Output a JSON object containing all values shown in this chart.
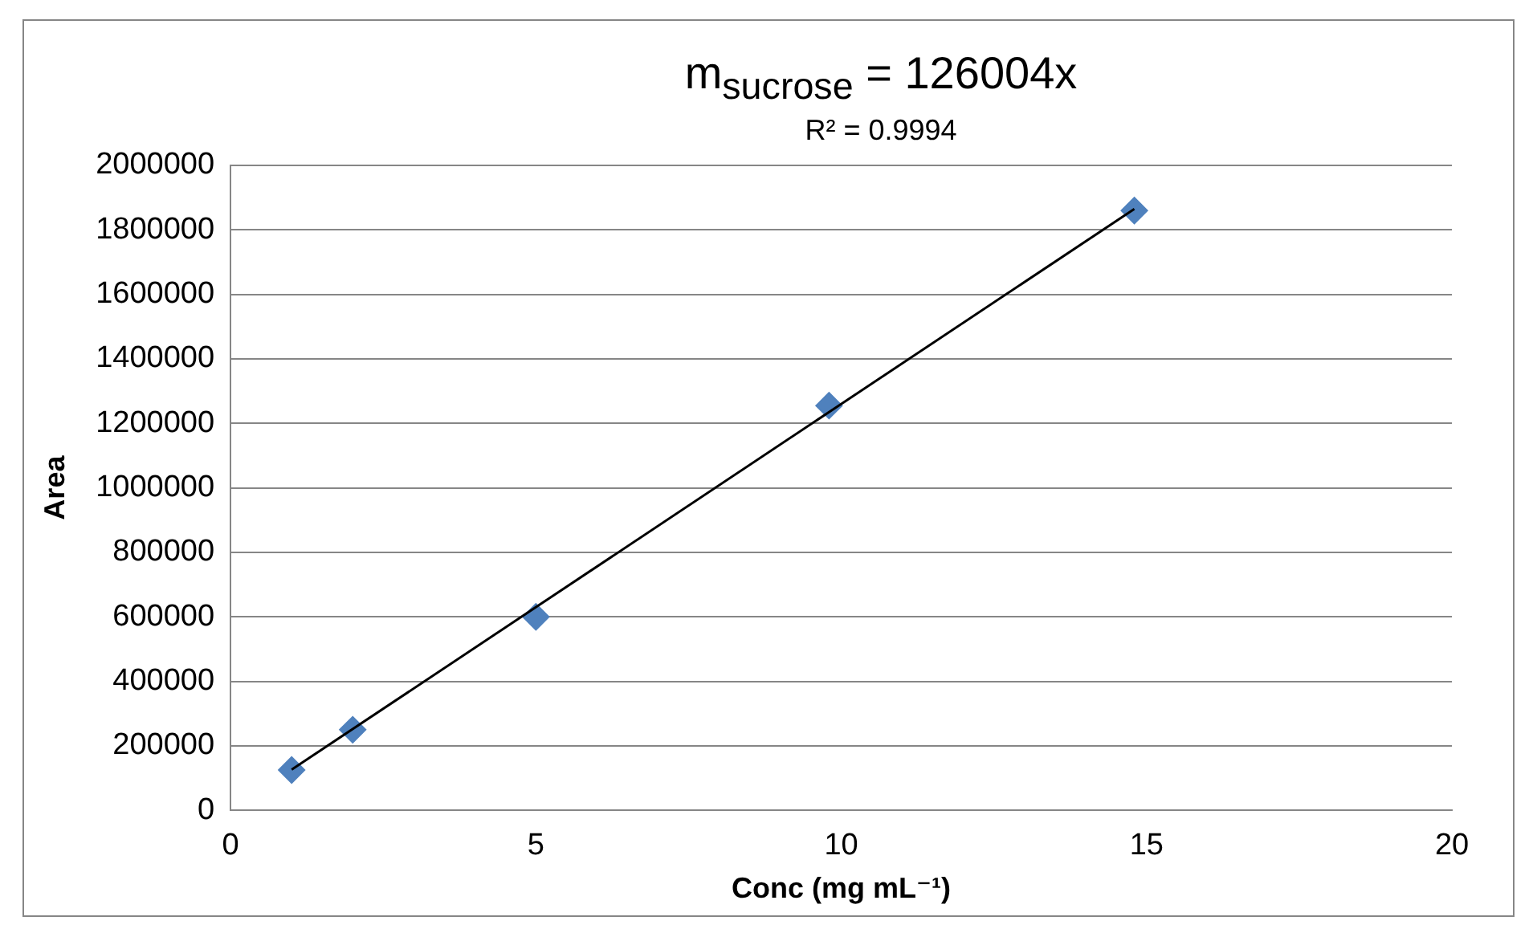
{
  "chart_data": {
    "type": "scatter",
    "title": "m$_{sucrose}$ = 126004x",
    "subtitle": "R² = 0.9994",
    "xlabel": "Conc (mg mL⁻¹)",
    "ylabel": "Area",
    "xlim": [
      0,
      20
    ],
    "xticks": [
      0,
      5,
      10,
      15,
      20
    ],
    "ylim": [
      0,
      2000000
    ],
    "yticks": [
      0,
      200000,
      400000,
      600000,
      800000,
      1000000,
      1200000,
      1400000,
      1600000,
      1800000,
      2000000
    ],
    "grid": "y",
    "legend": false,
    "marker": "diamond",
    "series": [
      {
        "type": "scatter",
        "color": "#4f81bd",
        "x": [
          1,
          2,
          5,
          9.8,
          14.8
        ],
        "values": [
          125000,
          250000,
          600000,
          1255000,
          1860000
        ]
      },
      {
        "type": "line",
        "color": "#000000",
        "x": [
          1,
          14.8
        ],
        "values": [
          126000,
          1865000
        ],
        "line_style": "solid",
        "marker": "none"
      }
    ]
  }
}
